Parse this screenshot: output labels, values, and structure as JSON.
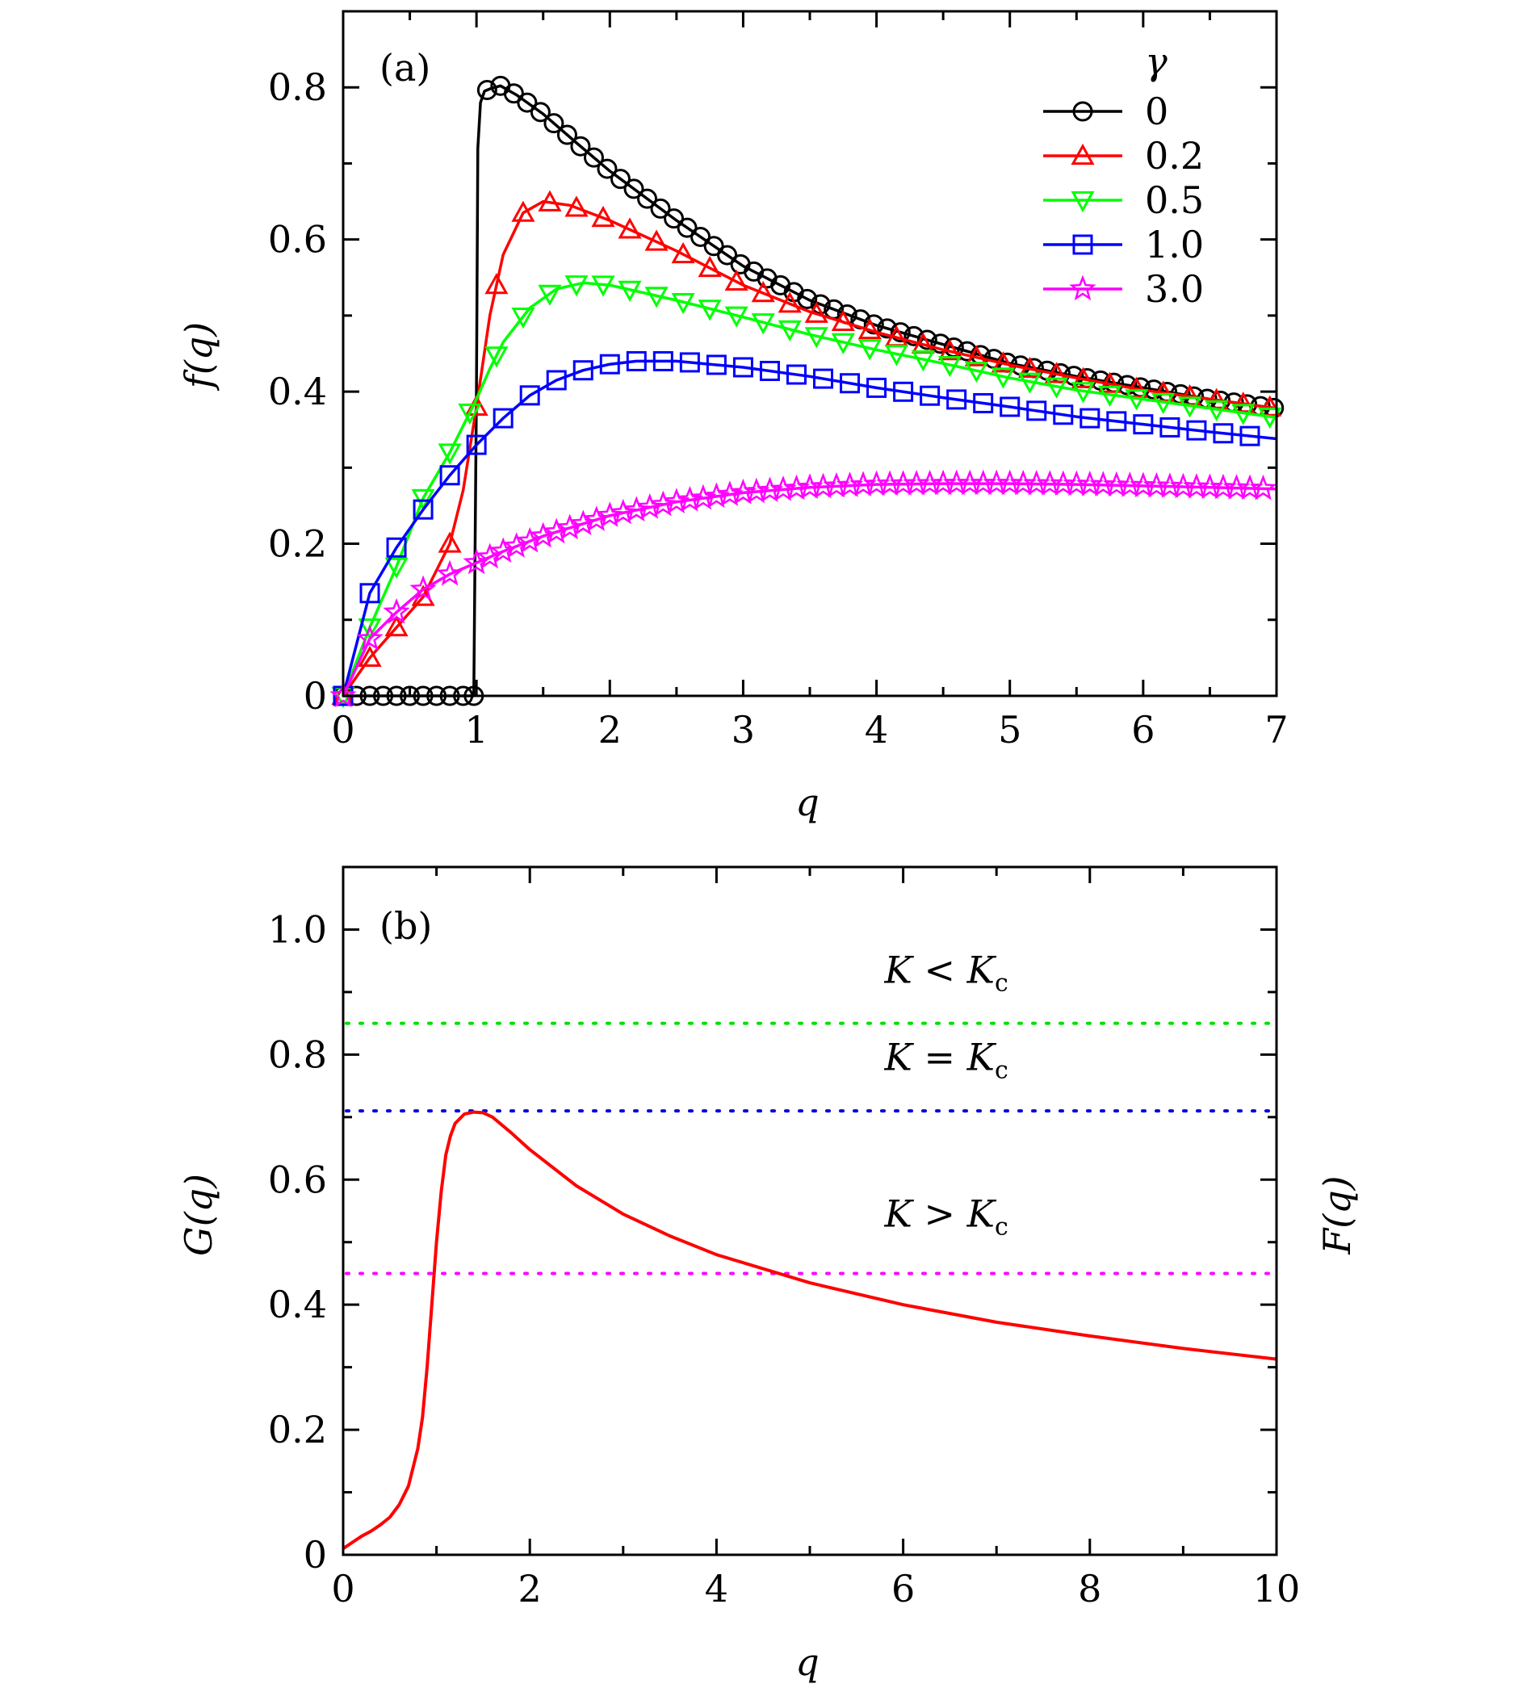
{
  "chart_data": [
    {
      "panel": "(a)",
      "type": "line",
      "xlabel": "q",
      "ylabel": "f(q)",
      "xlim": [
        0,
        7
      ],
      "ylim": [
        0,
        0.9
      ],
      "xticks": [
        0,
        1,
        2,
        3,
        4,
        5,
        6,
        7
      ],
      "xtick_labels": [
        "0",
        "1",
        "2",
        "3",
        "4",
        "5",
        "6",
        "7"
      ],
      "yticks": [
        0,
        0.2,
        0.4,
        0.6,
        0.8
      ],
      "ytick_labels": [
        "0",
        "0.2",
        "0.4",
        "0.6",
        "0.8"
      ],
      "legend": {
        "title": "γ",
        "placement": "top-right"
      },
      "series": [
        {
          "name": "0",
          "color": "#000000",
          "marker": "circle",
          "x": [
            0,
            0.1,
            0.2,
            0.3,
            0.4,
            0.5,
            0.6,
            0.7,
            0.8,
            0.9,
            0.98,
            1.0,
            1.01,
            1.03,
            1.06,
            1.1,
            1.18,
            1.3,
            1.5,
            1.75,
            2.0,
            2.5,
            3.0,
            3.5,
            4.0,
            4.5,
            5.0,
            5.5,
            6.0,
            6.5,
            7.0
          ],
          "y": [
            0,
            0,
            0,
            0,
            0,
            0,
            0,
            0,
            0,
            0,
            0,
            0.4,
            0.72,
            0.78,
            0.795,
            0.798,
            0.802,
            0.79,
            0.765,
            0.727,
            0.69,
            0.625,
            0.565,
            0.52,
            0.487,
            0.462,
            0.437,
            0.42,
            0.405,
            0.39,
            0.378
          ],
          "marker_x": [
            0,
            0.1,
            0.2,
            0.3,
            0.4,
            0.5,
            0.6,
            0.7,
            0.8,
            0.9,
            0.98,
            1.08,
            1.18,
            1.28,
            1.38,
            1.48,
            1.58,
            1.68,
            1.78,
            1.88,
            1.98,
            2.08,
            2.18,
            2.28,
            2.38,
            2.48,
            2.58,
            2.68,
            2.78,
            2.88,
            2.98,
            3.08,
            3.18,
            3.28,
            3.38,
            3.48,
            3.58,
            3.68,
            3.78,
            3.88,
            3.98,
            4.08,
            4.18,
            4.28,
            4.38,
            4.48,
            4.58,
            4.68,
            4.78,
            4.88,
            4.98,
            5.08,
            5.18,
            5.28,
            5.38,
            5.48,
            5.58,
            5.68,
            5.78,
            5.88,
            5.98,
            6.08,
            6.18,
            6.28,
            6.38,
            6.48,
            6.58,
            6.68,
            6.78,
            6.88,
            6.98
          ]
        },
        {
          "name": "0.2",
          "color": "#ff0000",
          "marker": "triangle-up",
          "x": [
            0,
            0.2,
            0.4,
            0.6,
            0.8,
            0.9,
            1.0,
            1.1,
            1.2,
            1.35,
            1.5,
            1.7,
            2.0,
            2.5,
            3.0,
            3.5,
            4.0,
            4.5,
            5.0,
            5.5,
            6.0,
            6.5,
            7.0
          ],
          "y": [
            0,
            0.05,
            0.09,
            0.13,
            0.2,
            0.27,
            0.38,
            0.5,
            0.58,
            0.635,
            0.65,
            0.645,
            0.625,
            0.585,
            0.54,
            0.505,
            0.478,
            0.455,
            0.435,
            0.418,
            0.402,
            0.39,
            0.378
          ],
          "marker_x": [
            0,
            0.2,
            0.4,
            0.6,
            0.8,
            1.0,
            1.15,
            1.35,
            1.55,
            1.75,
            1.95,
            2.15,
            2.35,
            2.55,
            2.75,
            2.95,
            3.15,
            3.35,
            3.55,
            3.75,
            3.95,
            4.15,
            4.35,
            4.55,
            4.75,
            4.95,
            5.15,
            5.35,
            5.55,
            5.75,
            5.95,
            6.15,
            6.35,
            6.55,
            6.75,
            6.95
          ]
        },
        {
          "name": "0.5",
          "color": "#00ff00",
          "marker": "triangle-down",
          "x": [
            0,
            0.2,
            0.4,
            0.6,
            0.8,
            1.0,
            1.1,
            1.2,
            1.4,
            1.6,
            1.8,
            2.0,
            2.5,
            3.0,
            3.5,
            4.0,
            4.5,
            5.0,
            5.5,
            6.0,
            6.5,
            7.0
          ],
          "y": [
            0,
            0.09,
            0.17,
            0.26,
            0.32,
            0.39,
            0.43,
            0.465,
            0.51,
            0.535,
            0.543,
            0.54,
            0.52,
            0.498,
            0.475,
            0.455,
            0.437,
            0.418,
            0.402,
            0.39,
            0.378,
            0.366
          ],
          "marker_x": [
            0,
            0.2,
            0.4,
            0.6,
            0.8,
            0.95,
            1.15,
            1.35,
            1.55,
            1.75,
            1.95,
            2.15,
            2.35,
            2.55,
            2.75,
            2.95,
            3.15,
            3.35,
            3.55,
            3.75,
            3.95,
            4.15,
            4.35,
            4.55,
            4.75,
            4.95,
            5.15,
            5.35,
            5.55,
            5.75,
            5.95,
            6.15,
            6.35,
            6.55,
            6.75,
            6.95
          ]
        },
        {
          "name": "1.0",
          "color": "#0000ff",
          "marker": "square",
          "x": [
            0,
            0.2,
            0.4,
            0.6,
            0.8,
            1.0,
            1.2,
            1.4,
            1.6,
            1.8,
            2.0,
            2.2,
            2.5,
            3.0,
            3.5,
            4.0,
            4.5,
            5.0,
            5.5,
            6.0,
            6.5,
            7.0
          ],
          "y": [
            0,
            0.135,
            0.195,
            0.245,
            0.29,
            0.33,
            0.365,
            0.395,
            0.415,
            0.428,
            0.436,
            0.44,
            0.44,
            0.432,
            0.42,
            0.405,
            0.392,
            0.38,
            0.367,
            0.357,
            0.347,
            0.338
          ],
          "marker_x": [
            0,
            0.2,
            0.4,
            0.6,
            0.8,
            1.0,
            1.2,
            1.4,
            1.6,
            1.8,
            2.0,
            2.2,
            2.4,
            2.6,
            2.8,
            3.0,
            3.2,
            3.4,
            3.6,
            3.8,
            4.0,
            4.2,
            4.4,
            4.6,
            4.8,
            5.0,
            5.2,
            5.4,
            5.6,
            5.8,
            6.0,
            6.2,
            6.4,
            6.6,
            6.8
          ]
        },
        {
          "name": "3.0",
          "color": "#ff00ff",
          "marker": "star",
          "x": [
            0,
            0.2,
            0.4,
            0.6,
            0.8,
            1.0,
            1.2,
            1.5,
            2.0,
            2.5,
            3.0,
            3.5,
            4.0,
            4.5,
            5.0,
            5.5,
            6.0,
            6.5,
            7.0
          ],
          "y": [
            0,
            0.075,
            0.11,
            0.14,
            0.16,
            0.175,
            0.19,
            0.21,
            0.237,
            0.255,
            0.267,
            0.274,
            0.278,
            0.279,
            0.279,
            0.278,
            0.276,
            0.274,
            0.272
          ],
          "marker_x": [
            0,
            0.2,
            0.4,
            0.6,
            0.8,
            1.0,
            1.1,
            1.2,
            1.3,
            1.4,
            1.5,
            1.6,
            1.7,
            1.8,
            1.9,
            2.0,
            2.1,
            2.2,
            2.3,
            2.4,
            2.5,
            2.6,
            2.7,
            2.8,
            2.9,
            3.0,
            3.1,
            3.2,
            3.3,
            3.4,
            3.5,
            3.6,
            3.7,
            3.8,
            3.9,
            4.0,
            4.1,
            4.2,
            4.3,
            4.4,
            4.5,
            4.6,
            4.7,
            4.8,
            4.9,
            5.0,
            5.1,
            5.2,
            5.3,
            5.4,
            5.5,
            5.6,
            5.7,
            5.8,
            5.9,
            6.0,
            6.1,
            6.2,
            6.3,
            6.4,
            6.5,
            6.6,
            6.7,
            6.8,
            6.9
          ]
        }
      ]
    },
    {
      "panel": "(b)",
      "type": "line",
      "xlabel": "q",
      "ylabel": "G(q)",
      "ylabel_right": "F(q)",
      "xlim": [
        0,
        10
      ],
      "ylim": [
        0,
        1.1
      ],
      "xticks": [
        0,
        2,
        4,
        6,
        8,
        10
      ],
      "xtick_labels": [
        "0",
        "2",
        "4",
        "6",
        "8",
        "10"
      ],
      "yticks": [
        0,
        0.2,
        0.4,
        0.6,
        0.8,
        1.0
      ],
      "ytick_labels": [
        "0",
        "0.2",
        "0.4",
        "0.6",
        "0.8",
        "1.0"
      ],
      "series": [
        {
          "name": "G(q)",
          "color": "#ff0000",
          "x": [
            0,
            0.1,
            0.2,
            0.3,
            0.4,
            0.5,
            0.6,
            0.7,
            0.8,
            0.85,
            0.9,
            0.95,
            1.0,
            1.05,
            1.1,
            1.15,
            1.2,
            1.3,
            1.4,
            1.5,
            1.6,
            1.8,
            2.0,
            2.5,
            3.0,
            3.5,
            4.0,
            5.0,
            6.0,
            7.0,
            8.0,
            9.0,
            10.0
          ],
          "y": [
            0.01,
            0.02,
            0.03,
            0.038,
            0.048,
            0.06,
            0.08,
            0.11,
            0.17,
            0.22,
            0.3,
            0.4,
            0.5,
            0.58,
            0.64,
            0.67,
            0.69,
            0.705,
            0.708,
            0.707,
            0.7,
            0.675,
            0.648,
            0.59,
            0.545,
            0.51,
            0.48,
            0.435,
            0.4,
            0.372,
            0.35,
            0.33,
            0.313
          ]
        }
      ],
      "hlines": [
        {
          "y": 0.85,
          "color": "#00e000",
          "style": "dotted",
          "label": "K < Kc"
        },
        {
          "y": 0.71,
          "color": "#0000e0",
          "style": "dotted",
          "label": "K = Kc"
        },
        {
          "y": 0.45,
          "color": "#ff00ff",
          "style": "dotted",
          "label": "K > Kc"
        }
      ],
      "annotations": [
        {
          "text_main": "K < K",
          "text_sub": "c",
          "x": 5.8,
          "y": 0.915
        },
        {
          "text_main": "K = K",
          "text_sub": "c",
          "x": 5.8,
          "y": 0.775
        },
        {
          "text_main": "K > K",
          "text_sub": "c",
          "x": 5.8,
          "y": 0.525
        }
      ]
    }
  ]
}
